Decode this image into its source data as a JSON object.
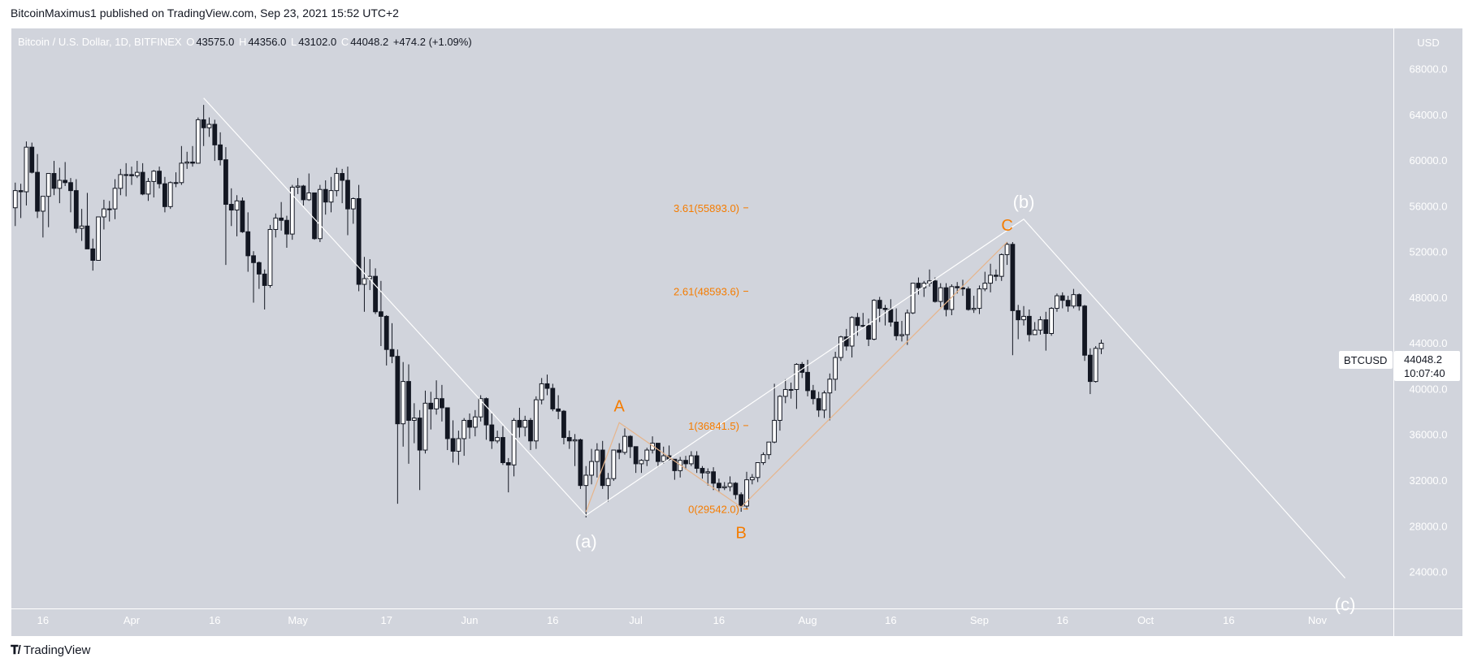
{
  "publish_line": "BitcoinMaximus1 published on TradingView.com, Sep 23, 2021 15:52 UTC+2",
  "legend": {
    "symbol": "Bitcoin / U.S. Dollar, 1D, BITFINEX",
    "o_label": "O",
    "o": "43575.0",
    "h_label": "H",
    "h": "44356.0",
    "l_label": "L",
    "l": "43102.0",
    "c_label": "C",
    "c": "44048.2",
    "change": "+474.2 (+1.09%)"
  },
  "price_tag": {
    "symbol": "BTCUSD",
    "price": "44048.2",
    "countdown": "10:07:40"
  },
  "footer": {
    "logo_text": "TradingView",
    "logo_icon": "tradingview-logo-icon"
  },
  "colors": {
    "background": "#d1d4dc",
    "bull": "#ffffff",
    "bear": "#131722",
    "wave_orange": "#f57c00",
    "wave_orange_line": "#e6b58c",
    "wave_white": "#ffffff"
  },
  "chart_data": {
    "type": "candlestick",
    "title": "Bitcoin / U.S. Dollar, 1D, BITFINEX",
    "ylabel": "USD",
    "ylim": [
      20000,
      70000
    ],
    "grid": false,
    "y_ticks": [
      "68000.0",
      "64000.0",
      "60000.0",
      "56000.0",
      "52000.0",
      "48000.0",
      "44000.0",
      "40000.0",
      "36000.0",
      "32000.0",
      "28000.0",
      "24000.0"
    ],
    "x_ticks": [
      {
        "date": "2021-03-16",
        "label": "16"
      },
      {
        "date": "2021-04-01",
        "label": "Apr"
      },
      {
        "date": "2021-04-16",
        "label": "16"
      },
      {
        "date": "2021-05-01",
        "label": "May"
      },
      {
        "date": "2021-05-17",
        "label": "17"
      },
      {
        "date": "2021-06-01",
        "label": "Jun"
      },
      {
        "date": "2021-06-16",
        "label": "16"
      },
      {
        "date": "2021-07-01",
        "label": "Jul"
      },
      {
        "date": "2021-07-16",
        "label": "16"
      },
      {
        "date": "2021-08-01",
        "label": "Aug"
      },
      {
        "date": "2021-08-16",
        "label": "16"
      },
      {
        "date": "2021-09-01",
        "label": "Sep"
      },
      {
        "date": "2021-09-16",
        "label": "16"
      },
      {
        "date": "2021-10-01",
        "label": "Oct"
      },
      {
        "date": "2021-10-16",
        "label": "16"
      },
      {
        "date": "2021-11-01",
        "label": "Nov"
      }
    ],
    "first_candle_date": "2021-03-11",
    "ohlc": [
      [
        55900,
        58100,
        54300,
        57400
      ],
      [
        57400,
        58000,
        55000,
        57300
      ],
      [
        57300,
        61700,
        56100,
        61200
      ],
      [
        61200,
        61600,
        58900,
        59000
      ],
      [
        59000,
        60600,
        55000,
        55600
      ],
      [
        55600,
        56900,
        53300,
        56900
      ],
      [
        56900,
        58900,
        54200,
        58900
      ],
      [
        58900,
        60000,
        57000,
        57600
      ],
      [
        57600,
        59400,
        56300,
        58300
      ],
      [
        58300,
        59900,
        57800,
        58100
      ],
      [
        58100,
        58500,
        55500,
        57400
      ],
      [
        57400,
        58400,
        53700,
        54100
      ],
      [
        54100,
        55800,
        53000,
        54300
      ],
      [
        54300,
        57200,
        52300,
        52300
      ],
      [
        52300,
        53200,
        50400,
        51300
      ],
      [
        51300,
        55100,
        51300,
        55100
      ],
      [
        55100,
        56600,
        54000,
        55800
      ],
      [
        55800,
        56500,
        54700,
        55800
      ],
      [
        55800,
        58400,
        54900,
        57600
      ],
      [
        57600,
        59300,
        57000,
        58800
      ],
      [
        58800,
        59800,
        56900,
        58800
      ],
      [
        58800,
        59500,
        57900,
        58700
      ],
      [
        58700,
        60000,
        58500,
        59000
      ],
      [
        59000,
        59800,
        57000,
        57100
      ],
      [
        57100,
        58500,
        56500,
        58200
      ],
      [
        58200,
        59200,
        56800,
        59100
      ],
      [
        59100,
        59500,
        57600,
        58000
      ],
      [
        58000,
        58600,
        55500,
        56000
      ],
      [
        56000,
        58200,
        55800,
        58100
      ],
      [
        58100,
        59000,
        57700,
        58100
      ],
      [
        58100,
        61300,
        57900,
        59800
      ],
      [
        59800,
        60800,
        59300,
        59900
      ],
      [
        59900,
        61300,
        59500,
        59800
      ],
      [
        59800,
        63800,
        59800,
        63600
      ],
      [
        63600,
        64900,
        61300,
        62900
      ],
      [
        62900,
        63800,
        62100,
        63200
      ],
      [
        63200,
        63600,
        60000,
        61400
      ],
      [
        61400,
        62500,
        59600,
        60100
      ],
      [
        60100,
        61200,
        50900,
        56200
      ],
      [
        56200,
        57600,
        54300,
        55700
      ],
      [
        55700,
        57000,
        53400,
        56500
      ],
      [
        56500,
        56800,
        53700,
        53800
      ],
      [
        53800,
        55500,
        50300,
        51700
      ],
      [
        51700,
        52100,
        47600,
        51100
      ],
      [
        51100,
        51200,
        48800,
        50100
      ],
      [
        50100,
        50500,
        47000,
        49100
      ],
      [
        49100,
        54400,
        48900,
        54000
      ],
      [
        54000,
        55400,
        53300,
        55000
      ],
      [
        55000,
        56400,
        53900,
        54800
      ],
      [
        54800,
        55200,
        52400,
        53600
      ],
      [
        53600,
        57900,
        53100,
        57700
      ],
      [
        57700,
        58500,
        57100,
        57800
      ],
      [
        57800,
        57900,
        56100,
        56600
      ],
      [
        56600,
        58900,
        56500,
        57200
      ],
      [
        57200,
        57200,
        53100,
        53200
      ],
      [
        53200,
        57900,
        52900,
        57500
      ],
      [
        57500,
        58300,
        55300,
        56400
      ],
      [
        56400,
        58600,
        55500,
        57400
      ],
      [
        57400,
        59400,
        56900,
        58900
      ],
      [
        58900,
        59300,
        56300,
        58300
      ],
      [
        58300,
        59500,
        53500,
        55800
      ],
      [
        55800,
        56800,
        54500,
        56700
      ],
      [
        56700,
        57900,
        48600,
        49200
      ],
      [
        49200,
        51600,
        46800,
        49700
      ],
      [
        49700,
        51400,
        48700,
        49900
      ],
      [
        49900,
        50600,
        46600,
        46800
      ],
      [
        46800,
        49500,
        43800,
        46400
      ],
      [
        46400,
        46500,
        42100,
        43500
      ],
      [
        43500,
        45800,
        42300,
        42900
      ],
      [
        42900,
        43500,
        30000,
        37000
      ],
      [
        37000,
        42400,
        35000,
        40700
      ],
      [
        40700,
        42200,
        33500,
        37300
      ],
      [
        37300,
        38800,
        35300,
        37500
      ],
      [
        37500,
        38200,
        31200,
        34700
      ],
      [
        34700,
        39900,
        34400,
        38800
      ],
      [
        38800,
        39800,
        36500,
        38300
      ],
      [
        38300,
        40800,
        37800,
        39200
      ],
      [
        39200,
        40400,
        37200,
        38400
      ],
      [
        38400,
        38400,
        34700,
        35700
      ],
      [
        35700,
        37300,
        33600,
        34600
      ],
      [
        34600,
        36400,
        33400,
        35700
      ],
      [
        35700,
        37500,
        34200,
        37300
      ],
      [
        37300,
        37900,
        35700,
        36700
      ],
      [
        36700,
        38200,
        35900,
        37600
      ],
      [
        37600,
        39500,
        37200,
        39200
      ],
      [
        39200,
        39300,
        35600,
        36900
      ],
      [
        36900,
        37900,
        34800,
        35500
      ],
      [
        35500,
        36400,
        35300,
        35800
      ],
      [
        35800,
        36800,
        33400,
        33600
      ],
      [
        33600,
        34000,
        31000,
        33400
      ],
      [
        33400,
        37500,
        32400,
        37300
      ],
      [
        37300,
        38400,
        35800,
        36700
      ],
      [
        36700,
        37700,
        35900,
        37300
      ],
      [
        37300,
        37500,
        34700,
        35500
      ],
      [
        35500,
        39400,
        34800,
        39100
      ],
      [
        39100,
        41000,
        38700,
        40500
      ],
      [
        40500,
        41300,
        39500,
        40100
      ],
      [
        40100,
        40500,
        38100,
        38300
      ],
      [
        38300,
        39500,
        37400,
        38100
      ],
      [
        38100,
        38200,
        35200,
        35800
      ],
      [
        35800,
        36400,
        34800,
        35500
      ],
      [
        35500,
        36100,
        33300,
        35600
      ],
      [
        35600,
        35700,
        31300,
        31600
      ],
      [
        31600,
        33300,
        28800,
        32500
      ],
      [
        32500,
        34800,
        31700,
        33700
      ],
      [
        33700,
        35300,
        32300,
        34700
      ],
      [
        34700,
        35500,
        31300,
        31600
      ],
      [
        31600,
        32700,
        30200,
        32200
      ],
      [
        32200,
        34700,
        32000,
        34700
      ],
      [
        34700,
        35300,
        33900,
        34500
      ],
      [
        34500,
        36600,
        34300,
        35900
      ],
      [
        35900,
        36000,
        34000,
        35000
      ],
      [
        35000,
        35000,
        32700,
        33500
      ],
      [
        33500,
        33900,
        32700,
        33800
      ],
      [
        33800,
        34900,
        33300,
        34700
      ],
      [
        34700,
        35900,
        34400,
        35300
      ],
      [
        35300,
        35300,
        33200,
        33700
      ],
      [
        33700,
        35000,
        33500,
        34200
      ],
      [
        34200,
        35100,
        33800,
        33900
      ],
      [
        33900,
        33900,
        32100,
        32900
      ],
      [
        32900,
        34100,
        32300,
        33800
      ],
      [
        33800,
        34200,
        33000,
        33500
      ],
      [
        33500,
        34600,
        33300,
        34200
      ],
      [
        34200,
        34600,
        32700,
        33100
      ],
      [
        33100,
        33300,
        32200,
        32700
      ],
      [
        32700,
        33100,
        31600,
        32800
      ],
      [
        32800,
        33200,
        31200,
        31800
      ],
      [
        31800,
        32200,
        31000,
        31400
      ],
      [
        31400,
        31900,
        31200,
        31500
      ],
      [
        31500,
        32400,
        31100,
        31800
      ],
      [
        31800,
        31900,
        30400,
        30800
      ],
      [
        30800,
        31000,
        29300,
        29800
      ],
      [
        29800,
        32800,
        29500,
        32100
      ],
      [
        32100,
        32600,
        31700,
        32300
      ],
      [
        32300,
        33600,
        31900,
        33600
      ],
      [
        33600,
        34500,
        33400,
        34300
      ],
      [
        34300,
        35400,
        33900,
        35400
      ],
      [
        35400,
        40500,
        35300,
        37300
      ],
      [
        37300,
        39500,
        36400,
        39400
      ],
      [
        39400,
        40900,
        38800,
        40000
      ],
      [
        40000,
        40600,
        39200,
        40000
      ],
      [
        40000,
        42300,
        38300,
        42200
      ],
      [
        42200,
        42400,
        41000,
        41500
      ],
      [
        41500,
        42600,
        39400,
        39900
      ],
      [
        39900,
        40400,
        38700,
        39200
      ],
      [
        39200,
        39800,
        37600,
        38200
      ],
      [
        38200,
        39900,
        37500,
        39700
      ],
      [
        39700,
        41400,
        37300,
        40900
      ],
      [
        40900,
        43300,
        39900,
        42800
      ],
      [
        42800,
        44700,
        42500,
        44600
      ],
      [
        44600,
        45300,
        43400,
        43800
      ],
      [
        43800,
        46400,
        42800,
        46300
      ],
      [
        46300,
        46700,
        44700,
        45600
      ],
      [
        45600,
        46700,
        45400,
        45600
      ],
      [
        45600,
        46200,
        43800,
        44400
      ],
      [
        44400,
        47900,
        44300,
        47800
      ],
      [
        47800,
        48100,
        45900,
        47100
      ],
      [
        47100,
        47400,
        45600,
        47000
      ],
      [
        47000,
        47900,
        45500,
        45900
      ],
      [
        45900,
        47100,
        44300,
        44700
      ],
      [
        44700,
        46000,
        44200,
        44800
      ],
      [
        44800,
        47000,
        43900,
        46700
      ],
      [
        46700,
        49300,
        46600,
        49300
      ],
      [
        49300,
        49800,
        48300,
        48900
      ],
      [
        48900,
        49500,
        48100,
        49300
      ],
      [
        49300,
        50500,
        49000,
        49500
      ],
      [
        49500,
        49800,
        47600,
        47700
      ],
      [
        47700,
        49300,
        47200,
        48900
      ],
      [
        48900,
        49300,
        46400,
        47000
      ],
      [
        47000,
        49200,
        46500,
        49000
      ],
      [
        49000,
        49400,
        48400,
        48900
      ],
      [
        48900,
        49600,
        48200,
        48800
      ],
      [
        48800,
        49000,
        46900,
        47000
      ],
      [
        47000,
        48200,
        46700,
        47100
      ],
      [
        47100,
        49100,
        46600,
        48800
      ],
      [
        48800,
        50300,
        48600,
        49300
      ],
      [
        49300,
        51000,
        48500,
        50000
      ],
      [
        50000,
        50500,
        49500,
        49900
      ],
      [
        49900,
        51900,
        49500,
        51800
      ],
      [
        51800,
        52900,
        50900,
        52700
      ],
      [
        52700,
        52900,
        43000,
        46900
      ],
      [
        46900,
        47400,
        44400,
        46100
      ],
      [
        46100,
        47300,
        45600,
        46400
      ],
      [
        46400,
        47000,
        44200,
        44800
      ],
      [
        44800,
        45900,
        44800,
        45200
      ],
      [
        45200,
        46400,
        44800,
        46100
      ],
      [
        46100,
        46800,
        43400,
        44900
      ],
      [
        44900,
        47200,
        44700,
        47100
      ],
      [
        47100,
        48400,
        46800,
        48200
      ],
      [
        48200,
        48500,
        47100,
        47800
      ],
      [
        47800,
        48200,
        46800,
        47300
      ],
      [
        47300,
        48800,
        47100,
        48300
      ],
      [
        48300,
        48400,
        46900,
        47300
      ],
      [
        47300,
        47400,
        42500,
        43000
      ],
      [
        43000,
        43600,
        39600,
        40700
      ],
      [
        40700,
        43800,
        40600,
        43600
      ],
      [
        43575,
        44356,
        43102,
        44048.2
      ]
    ],
    "white_wave": [
      {
        "date": "2021-04-14",
        "price": 65500
      },
      {
        "date": "2021-06-22",
        "price": 29000,
        "label": "(a)",
        "label_pos": "below"
      },
      {
        "date": "2021-09-09",
        "price": 54900,
        "label": "(b)",
        "label_pos": "above"
      },
      {
        "date": "2021-11-06",
        "price": 23500,
        "label": "(c)",
        "label_pos": "below"
      }
    ],
    "orange_wave": [
      {
        "date": "2021-06-22",
        "price": 29300
      },
      {
        "date": "2021-06-28",
        "price": 37100,
        "label": "A",
        "label_pos": "above"
      },
      {
        "date": "2021-07-20",
        "price": 29700,
        "label": "B",
        "label_pos": "below"
      },
      {
        "date": "2021-09-06",
        "price": 52900,
        "label": "C",
        "label_pos": "above"
      }
    ],
    "fib_levels": [
      {
        "ratio": "3.61",
        "price": 55893.0,
        "label": "3.61(55893.0)"
      },
      {
        "ratio": "2.61",
        "price": 48593.6,
        "label": "2.61(48593.6)"
      },
      {
        "ratio": "1",
        "price": 36841.5,
        "label": "1(36841.5)"
      },
      {
        "ratio": "0",
        "price": 29542.0,
        "label": "0(29542.0)"
      }
    ]
  }
}
